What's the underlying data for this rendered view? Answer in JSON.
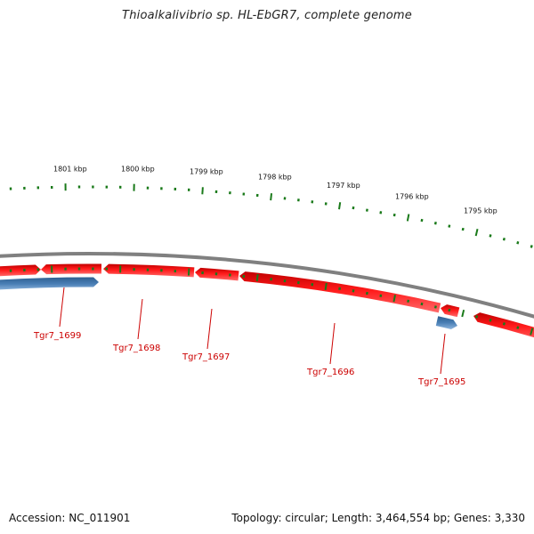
{
  "title": "Thioalkalivibrio sp. HL-EbGR7, complete genome",
  "footer": {
    "accession": "Accession: NC_011901",
    "topology": "Topology: circular; Length: 3,464,554 bp; Genes: 3,330"
  },
  "colors": {
    "forward_strand": "#e31a1c",
    "reverse_strand": "#4a7fb5",
    "backbone": "#808080",
    "ticks": "#1a7a1a",
    "labels": "#cc0000"
  },
  "scale": {
    "unit": "kbp",
    "labels": [
      "1801 kbp",
      "1800 kbp",
      "1799 kbp",
      "1798 kbp",
      "1797 kbp",
      "1796 kbp",
      "1795 kbp"
    ]
  },
  "genes": [
    {
      "label": "Tgr7_1699",
      "strand": "reverse"
    },
    {
      "label": "Tgr7_1698",
      "strand": "forward"
    },
    {
      "label": "Tgr7_1697",
      "strand": "forward"
    },
    {
      "label": "Tgr7_1696",
      "strand": "forward"
    },
    {
      "label": "Tgr7_1695",
      "strand": "reverse"
    }
  ]
}
